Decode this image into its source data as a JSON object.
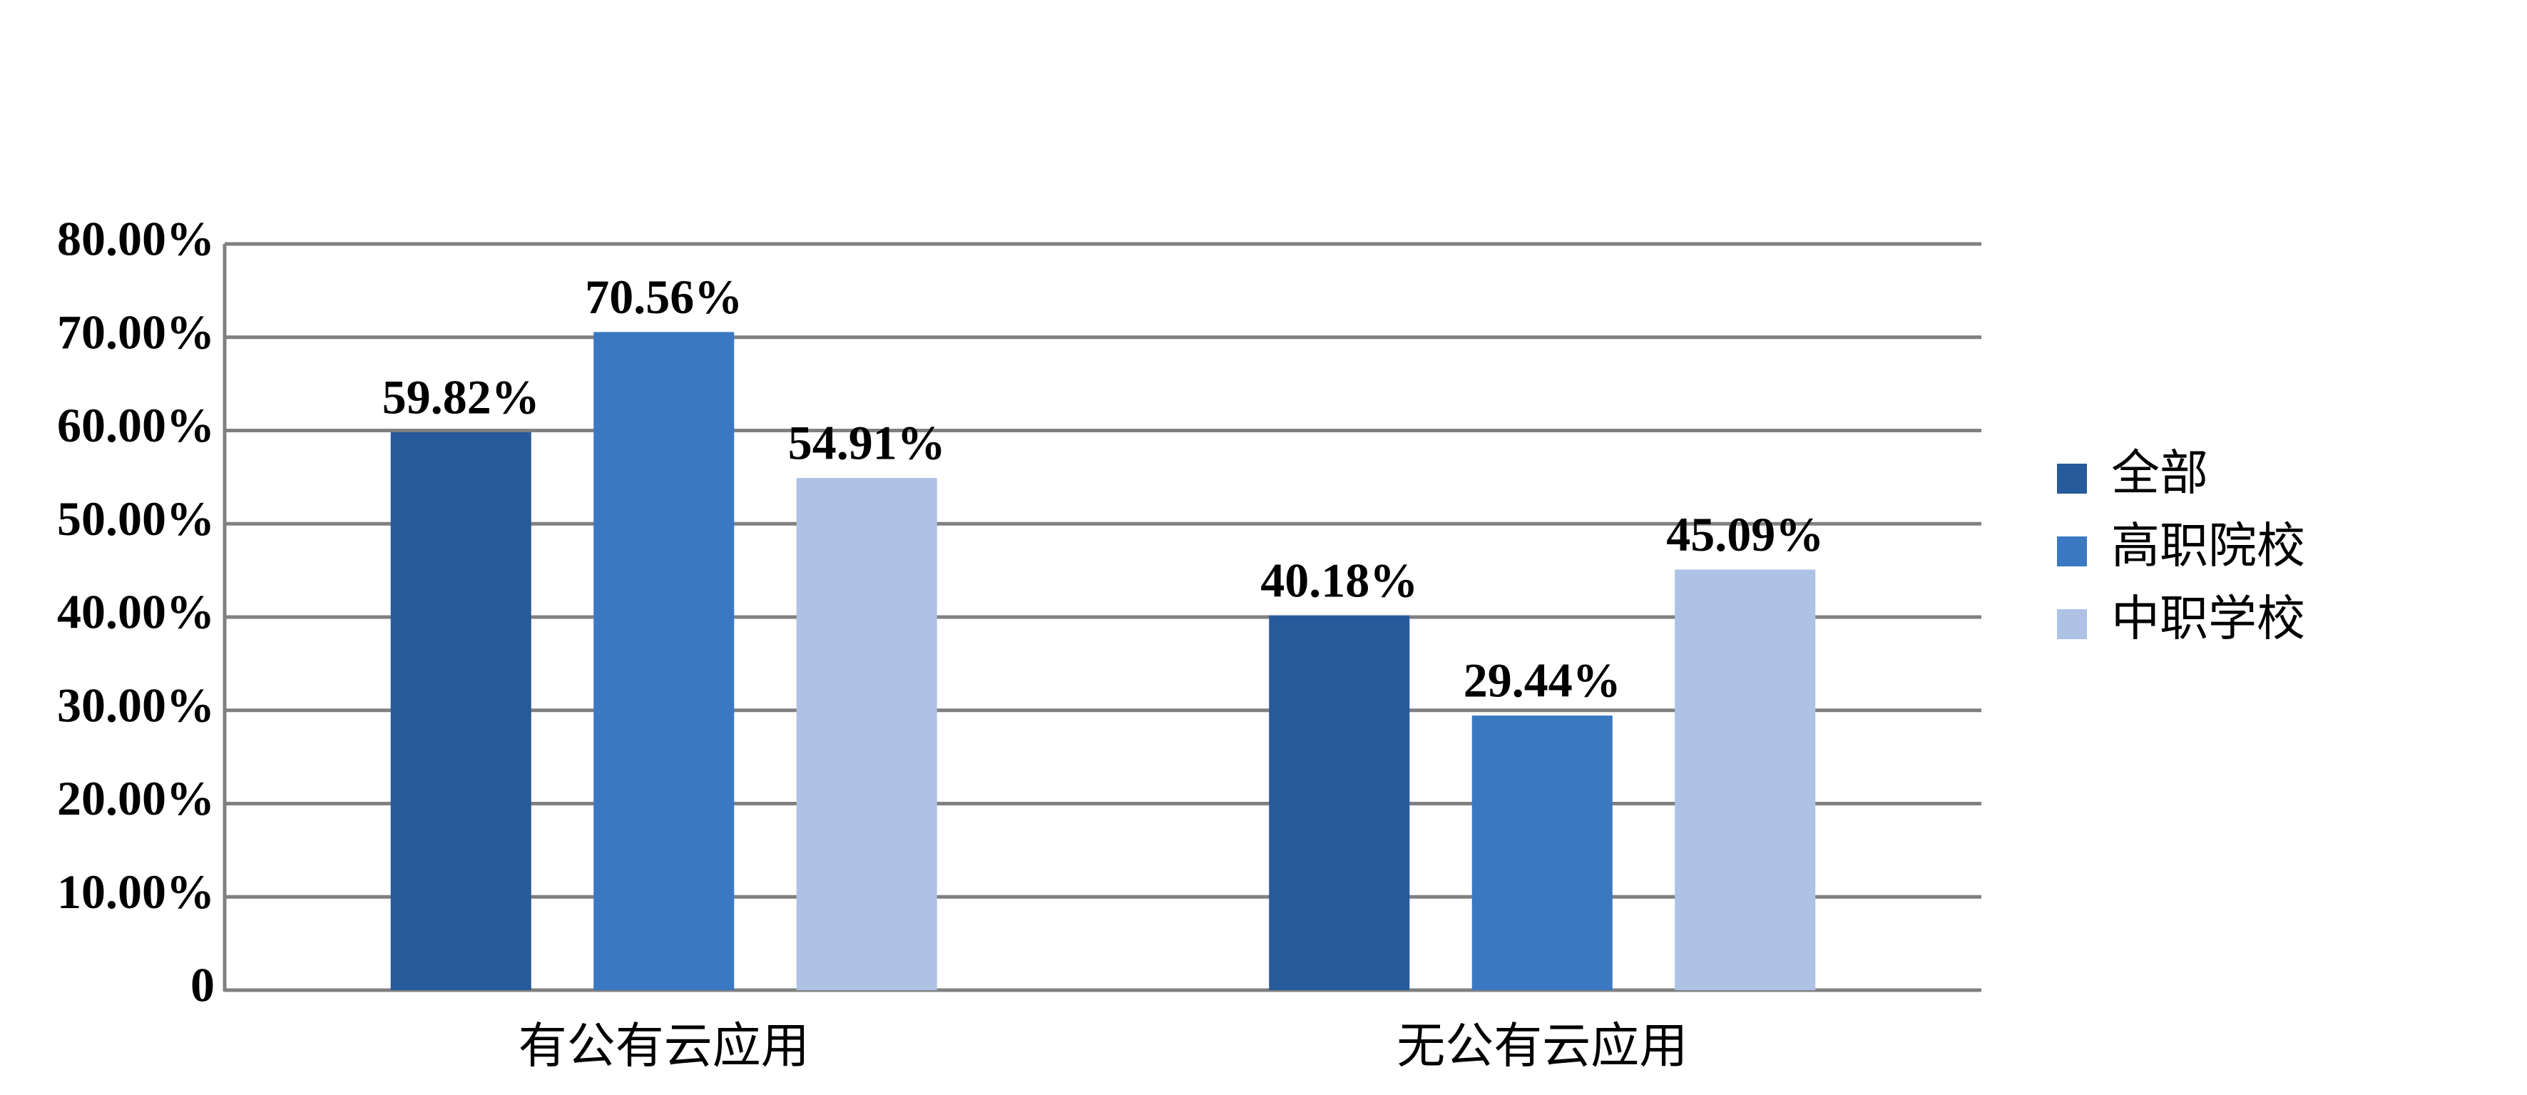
{
  "chart_data": {
    "type": "bar",
    "categories": [
      "有公有云应用",
      "无公有云应用"
    ],
    "series": [
      {
        "name": "全部",
        "color": "#275a9a",
        "values": [
          59.82,
          40.18
        ],
        "value_labels": [
          "59.82%",
          "40.18%"
        ]
      },
      {
        "name": "高职院校",
        "color": "#3a78c2",
        "values": [
          70.56,
          29.44
        ],
        "value_labels": [
          "70.56%",
          "29.44%"
        ]
      },
      {
        "name": "中职学校",
        "color": "#aec2e6",
        "values": [
          54.91,
          45.09
        ],
        "value_labels": [
          "54.91%",
          "45.09%"
        ]
      }
    ],
    "ylim": [
      0,
      80
    ],
    "yticks": [
      0,
      {
        "value": 10,
        "label": "10.00%"
      },
      {
        "value": 20,
        "label": "20.00%"
      },
      {
        "value": 30,
        "label": "30.00%"
      },
      {
        "value": 40,
        "label": "40.00%"
      },
      {
        "value": 50,
        "label": "50.00%"
      },
      {
        "value": 60,
        "label": "60.00%"
      },
      {
        "value": 70,
        "label": "70.00%"
      },
      {
        "value": 80,
        "label": "80.00%"
      }
    ],
    "grid": true,
    "legend": "right"
  }
}
